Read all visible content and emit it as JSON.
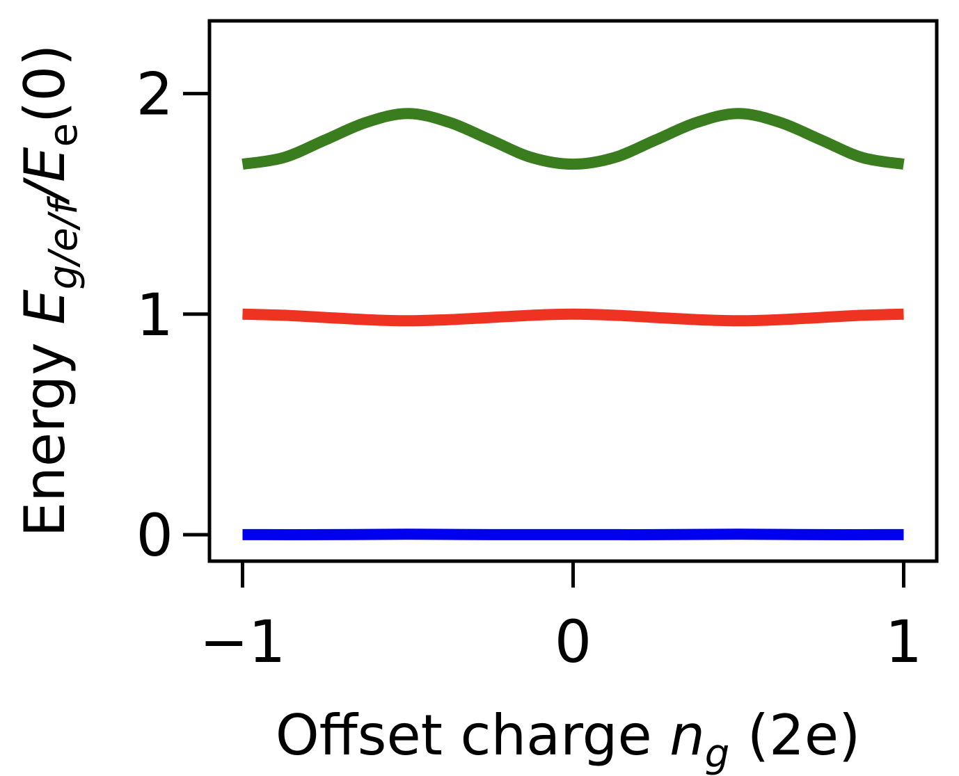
{
  "chart_data": {
    "type": "line",
    "xlabel": "Offset charge n_g (2e)",
    "xlabel_parts": {
      "prefix": "Offset charge ",
      "symbol": "n",
      "subscript": "g",
      "suffix": " (2e)"
    },
    "ylabel": "Energy E_g/e/f/E_e(0)",
    "ylabel_parts": {
      "prefix": "Energy ",
      "symbol": "E",
      "subscript": "g/e/f",
      "slash": "/",
      "symbol2": "E",
      "subscript2": "e",
      "suffix": "(0)"
    },
    "xlim": [
      -1.1,
      1.1
    ],
    "ylim": [
      -0.12,
      2.33
    ],
    "xticks": [
      -1,
      0,
      1
    ],
    "xtick_labels": [
      "−1",
      "0",
      "1"
    ],
    "yticks": [
      0,
      1,
      2
    ],
    "ytick_labels": [
      "0",
      "1",
      "2"
    ],
    "grid": false,
    "legend": "none",
    "series": [
      {
        "color": "#0000ee",
        "x": [
          -1.0,
          -0.75,
          -0.5,
          -0.25,
          0.0,
          0.25,
          0.5,
          0.75,
          1.0
        ],
        "y": [
          0.0,
          0.0,
          0.002,
          0.0,
          0.0,
          0.0,
          0.002,
          0.0,
          0.0
        ]
      },
      {
        "color": "#ee3322",
        "x": [
          -1.0,
          -0.875,
          -0.75,
          -0.625,
          -0.5,
          -0.375,
          -0.25,
          -0.125,
          0.0,
          0.125,
          0.25,
          0.375,
          0.5,
          0.625,
          0.75,
          0.875,
          1.0
        ],
        "y": [
          1.0,
          0.995,
          0.985,
          0.975,
          0.97,
          0.975,
          0.985,
          0.995,
          1.0,
          0.995,
          0.985,
          0.975,
          0.97,
          0.975,
          0.985,
          0.995,
          1.0
        ]
      },
      {
        "color": "#3a7d1e",
        "x": [
          -1.0,
          -0.875,
          -0.75,
          -0.625,
          -0.5,
          -0.375,
          -0.25,
          -0.125,
          0.0,
          0.125,
          0.25,
          0.375,
          0.5,
          0.625,
          0.75,
          0.875,
          1.0
        ],
        "y": [
          1.68,
          1.71,
          1.79,
          1.87,
          1.91,
          1.87,
          1.79,
          1.71,
          1.68,
          1.71,
          1.79,
          1.87,
          1.91,
          1.87,
          1.79,
          1.71,
          1.68
        ]
      }
    ]
  }
}
